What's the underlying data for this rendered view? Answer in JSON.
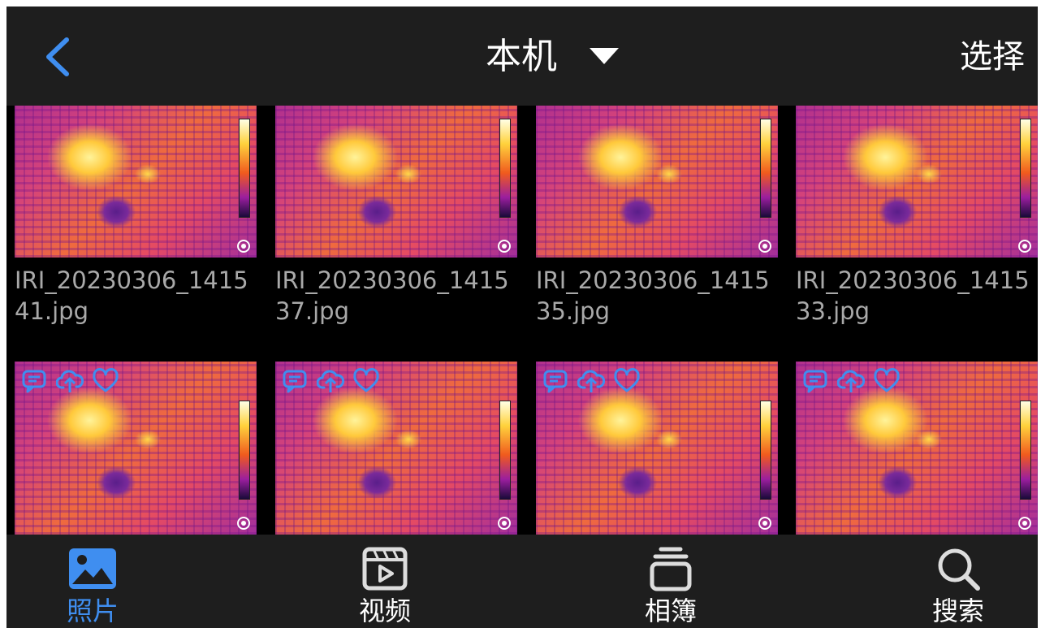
{
  "header": {
    "title": "本机",
    "select_label": "选择",
    "back_icon": "chevron-left-icon",
    "dropdown_icon": "caret-down-icon"
  },
  "photos": [
    {
      "caption": "IRI_20230306_141541.jpg",
      "badges": false
    },
    {
      "caption": "IRI_20230306_141537.jpg",
      "badges": false
    },
    {
      "caption": "IRI_20230306_141535.jpg",
      "badges": false
    },
    {
      "caption": "IRI_20230306_141533.jpg",
      "badges": false
    },
    {
      "caption": "",
      "badges": true
    },
    {
      "caption": "",
      "badges": true
    },
    {
      "caption": "",
      "badges": true
    },
    {
      "caption": "",
      "badges": true
    }
  ],
  "badge_icons": [
    "comment-icon",
    "cloud-upload-icon",
    "heart-icon"
  ],
  "nav": {
    "items": [
      {
        "label": "照片",
        "icon": "image-icon",
        "active": true
      },
      {
        "label": "视频",
        "icon": "video-icon",
        "active": false
      },
      {
        "label": "相簿",
        "icon": "album-stack-icon",
        "active": false
      },
      {
        "label": "搜索",
        "icon": "search-icon",
        "active": false
      }
    ]
  },
  "colors": {
    "accent": "#3f8ef0",
    "bar_background": "#1e1e1e",
    "grid_background": "#000000",
    "caption_text": "#a9a9a9"
  }
}
